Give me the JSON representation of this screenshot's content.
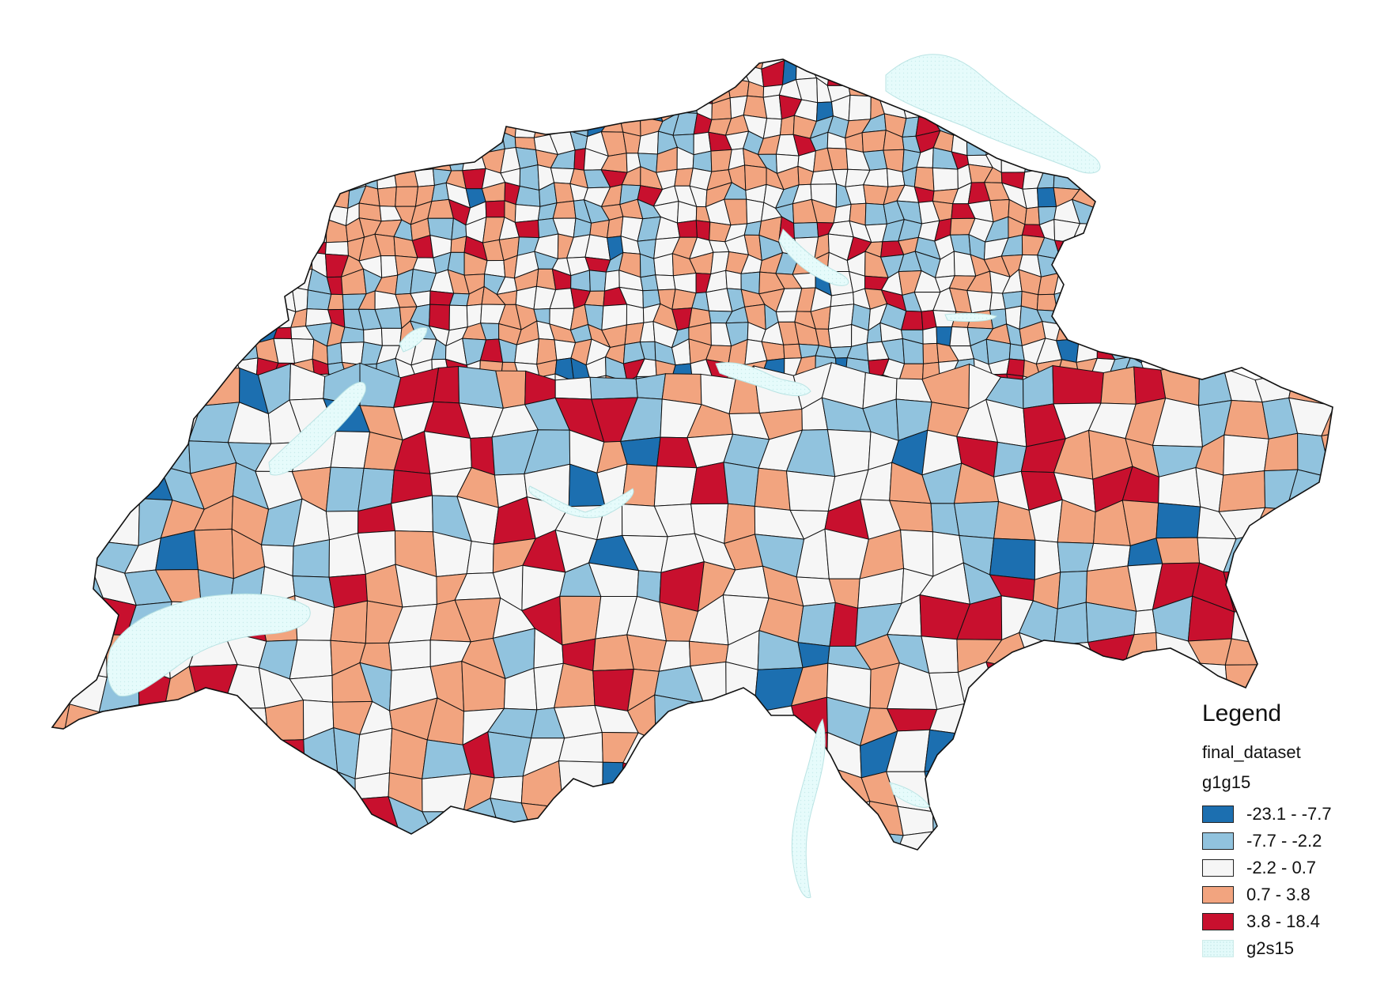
{
  "legend": {
    "title": "Legend",
    "layer_name": "final_dataset",
    "field_name": "g1g15",
    "classes": [
      {
        "label": "-23.1 - -7.7",
        "color": "#1c6fb0",
        "min": -23.1,
        "max": -7.7
      },
      {
        "label": "-7.7 - -2.2",
        "color": "#91c3de",
        "min": -7.7,
        "max": -2.2
      },
      {
        "label": "-2.2 - 0.7",
        "color": "#f6f6f6",
        "min": -2.2,
        "max": 0.7
      },
      {
        "label": "0.7 - 3.8",
        "color": "#f2a47f",
        "min": 0.7,
        "max": 3.8
      },
      {
        "label": "3.8 - 18.4",
        "color": "#c8102e",
        "min": 3.8,
        "max": 18.4
      }
    ],
    "lakes": {
      "label": "g2s15",
      "color": "#e3fafa"
    }
  }
}
